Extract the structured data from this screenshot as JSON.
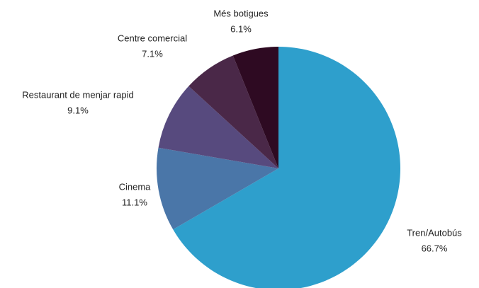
{
  "chart_data": {
    "type": "pie",
    "categories": [
      "Tren/Autobús",
      "Cinema",
      "Restaurant de menjar rapid",
      "Centre comercial",
      "Més botigues"
    ],
    "values": [
      66.7,
      11.1,
      9.1,
      7.1,
      6.1
    ],
    "value_labels": [
      "66.7%",
      "11.1%",
      "9.1%",
      "7.1%",
      "6.1%"
    ],
    "colors": [
      "#2e9fcc",
      "#4a76a8",
      "#574a7e",
      "#4a2848",
      "#2e0a22"
    ]
  }
}
